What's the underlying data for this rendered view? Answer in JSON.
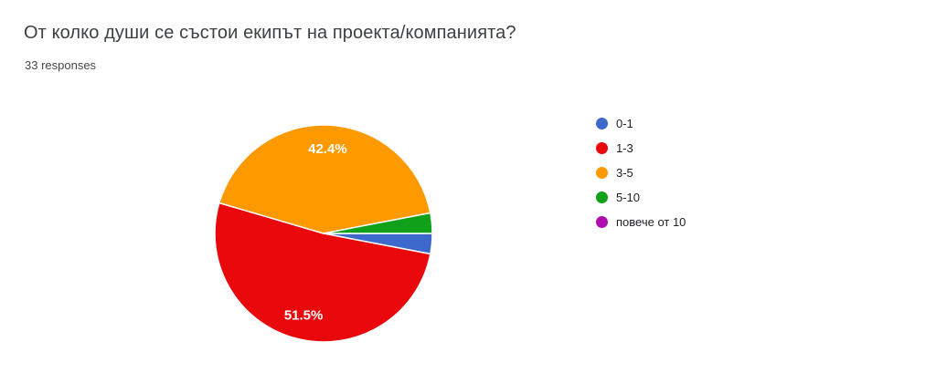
{
  "chart_data": {
    "type": "pie",
    "title": "От колко души се състои екипът на проекта/компанията?",
    "subtitle": "33 responses",
    "total_responses": 33,
    "categories": [
      "0-1",
      "1-3",
      "3-5",
      "5-10",
      "повече от 10"
    ],
    "values": [
      1,
      17,
      14,
      1,
      0
    ],
    "percent_labels": [
      "",
      "51.5%",
      "42.4%",
      "",
      ""
    ],
    "colors": [
      "#3C69CB",
      "#E9090C",
      "#FF9900",
      "#10A019",
      "#AD0EAD"
    ],
    "slice_label_color": "#ffffff",
    "start_angle_deg": 90,
    "direction": "clockwise",
    "legend_position": "right",
    "background": "#ffffff"
  }
}
